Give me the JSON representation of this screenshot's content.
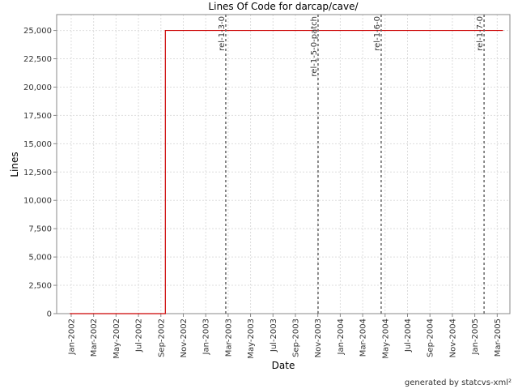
{
  "chart_data": {
    "type": "line",
    "title": "Lines Of Code for darcap/cave/",
    "x_label": "Date",
    "y_label": "Lines",
    "footer": "generated by statcvs-xml²",
    "x": [
      2001.99,
      2002.7,
      2002.7,
      2005.21
    ],
    "series": [
      {
        "name": "Lines",
        "color": "#cc0000",
        "values": [
          0,
          0,
          25000,
          25000
        ]
      }
    ],
    "xlim": [
      2001.892,
      2005.261
    ],
    "ylim": [
      0,
      26400
    ],
    "xticks": [
      {
        "value": 2002.0,
        "label": "Jan-2002"
      },
      {
        "value": 2002.1667,
        "label": "Mar-2002"
      },
      {
        "value": 2002.3333,
        "label": "May-2002"
      },
      {
        "value": 2002.5,
        "label": "Jul-2002"
      },
      {
        "value": 2002.6667,
        "label": "Sep-2002"
      },
      {
        "value": 2002.8333,
        "label": "Nov-2002"
      },
      {
        "value": 2003.0,
        "label": "Jan-2003"
      },
      {
        "value": 2003.1667,
        "label": "Mar-2003"
      },
      {
        "value": 2003.3333,
        "label": "May-2003"
      },
      {
        "value": 2003.5,
        "label": "Jul-2003"
      },
      {
        "value": 2003.6667,
        "label": "Sep-2003"
      },
      {
        "value": 2003.8333,
        "label": "Nov-2003"
      },
      {
        "value": 2004.0,
        "label": "Jan-2004"
      },
      {
        "value": 2004.1667,
        "label": "Mar-2004"
      },
      {
        "value": 2004.3333,
        "label": "May-2004"
      },
      {
        "value": 2004.5,
        "label": "Jul-2004"
      },
      {
        "value": 2004.6667,
        "label": "Sep-2004"
      },
      {
        "value": 2004.8333,
        "label": "Nov-2004"
      },
      {
        "value": 2005.0,
        "label": "Jan-2005"
      },
      {
        "value": 2005.1667,
        "label": "Mar-2005"
      }
    ],
    "yticks": [
      0,
      {
        "value": 2500,
        "label": "2,500"
      },
      {
        "value": 5000,
        "label": "5,000"
      },
      {
        "value": 7500,
        "label": "7,500"
      },
      {
        "value": 10000,
        "label": "10,000"
      },
      {
        "value": 12500,
        "label": "12,500"
      },
      {
        "value": 15000,
        "label": "15,000"
      },
      {
        "value": 17500,
        "label": "17,500"
      },
      {
        "value": 20000,
        "label": "20,000"
      },
      {
        "value": 22500,
        "label": "22,500"
      },
      {
        "value": 25000,
        "label": "25,000"
      }
    ],
    "grid": true,
    "markers": [
      {
        "label": "rel-1-3-0",
        "x": 2003.149
      },
      {
        "label": "rel-1-5-0-patch",
        "x": 2003.835
      },
      {
        "label": "rel-1-6-0",
        "x": 2004.304
      },
      {
        "label": "rel-1-7-0",
        "x": 2005.069
      }
    ]
  }
}
